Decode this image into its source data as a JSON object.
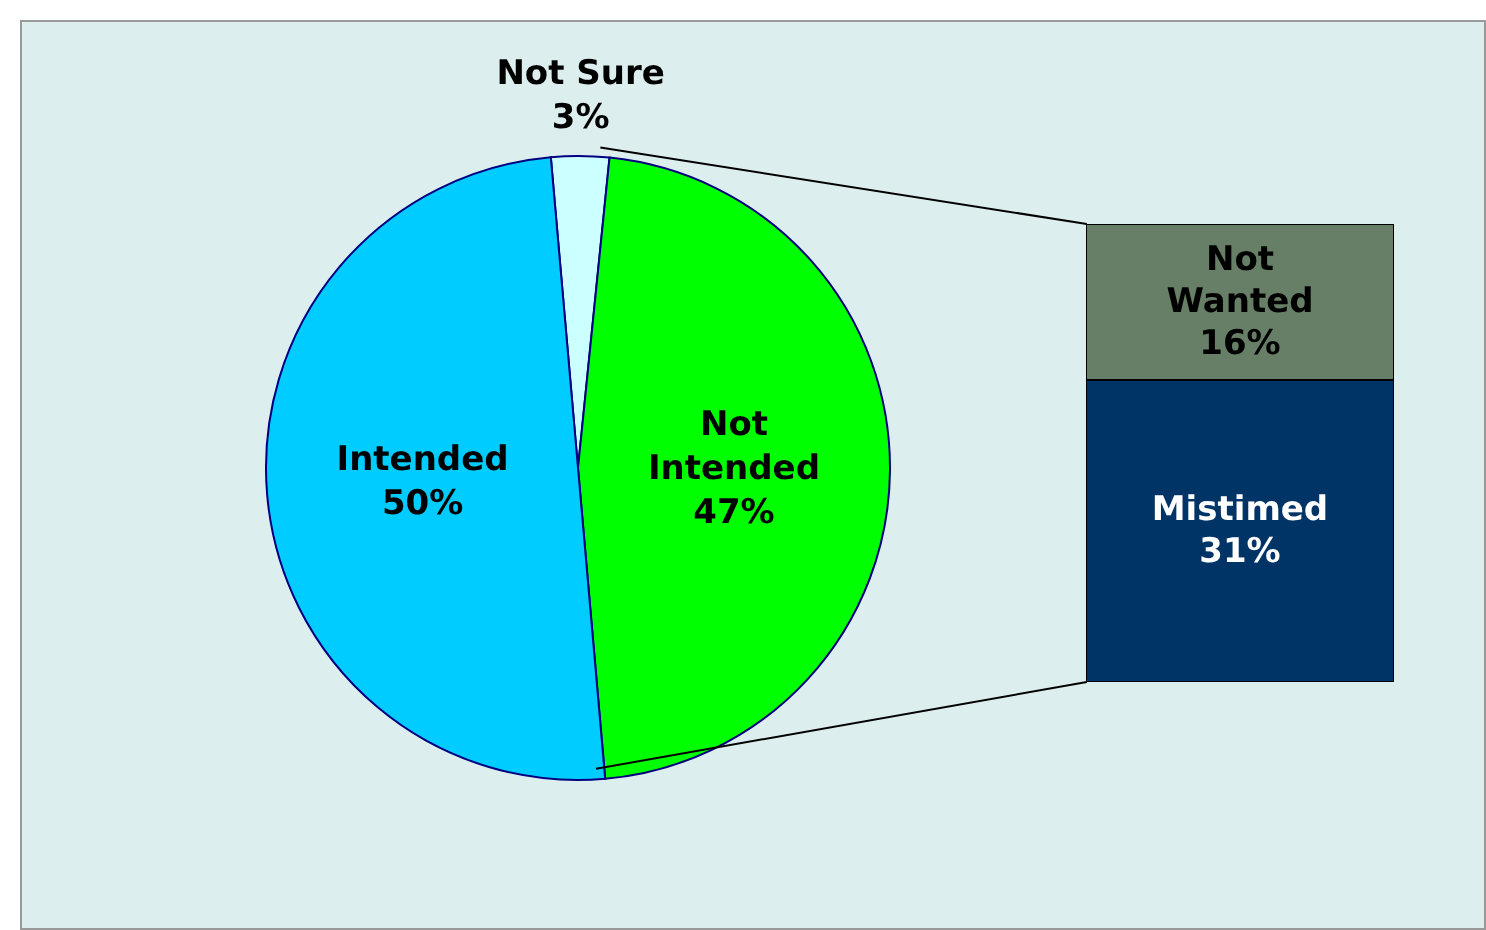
{
  "chart_data": [
    {
      "type": "pie",
      "categories": [
        "Not Sure",
        "Not Intended",
        "Intended"
      ],
      "values": [
        3,
        47,
        50
      ],
      "colors": [
        "#ccffff",
        "#00ff00",
        "#00ccff"
      ],
      "value_labels": [
        "3%",
        "47%",
        "50%"
      ]
    },
    {
      "type": "bar",
      "stacked": true,
      "categories": [
        null
      ],
      "series": [
        {
          "name": "Mistimed",
          "color": "#003366",
          "values": [
            31
          ],
          "value_labels": [
            "31%"
          ]
        },
        {
          "name": "Not Wanted",
          "color": "#667f66",
          "values": [
            16
          ],
          "value_labels": [
            "16%"
          ]
        }
      ]
    }
  ]
}
